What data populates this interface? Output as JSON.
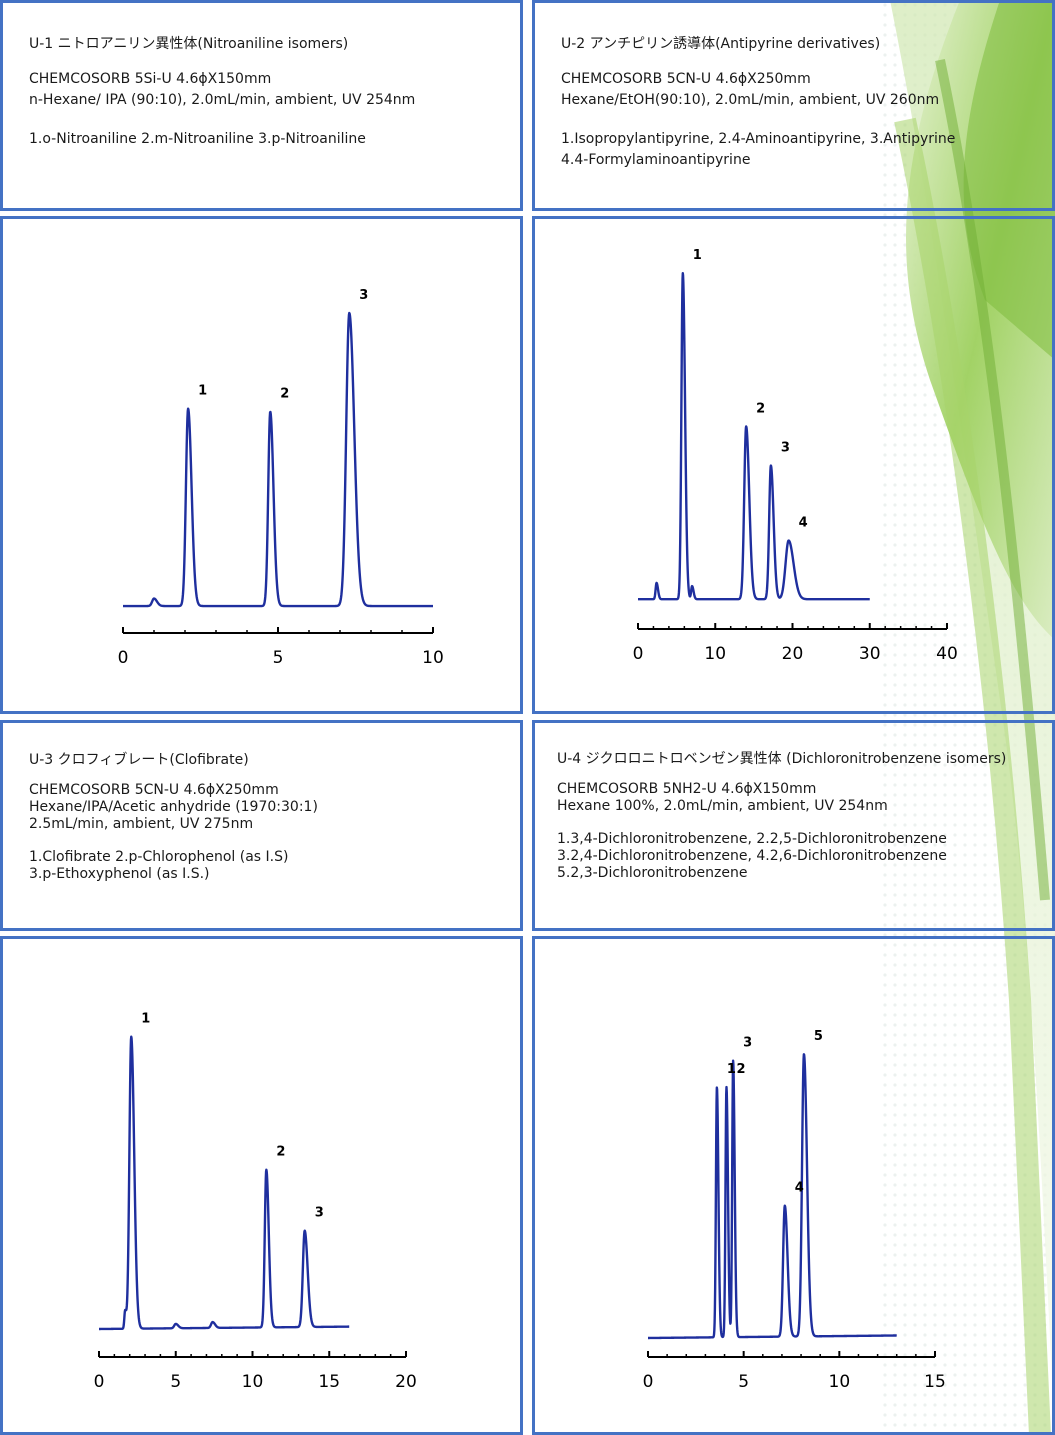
{
  "colors": {
    "border": "#4472c4",
    "trace": "#1f2f9e",
    "axis": "#000000"
  },
  "panels": [
    {
      "title": "U-1 ニトロアニリン異性体(Nitroaniline isomers)",
      "lines": [
        "CHEMCOSORB 5Si-U 4.6ϕX150mm",
        "n-Hexane/ IPA (90:10), 2.0mL/min, ambient, UV 254nm",
        "",
        "1.o-Nitroaniline 2.m-Nitroaniline 3.p-Nitroaniline"
      ]
    },
    {
      "title": "U-2 アンチピリン誘導体(Antipyrine derivatives)",
      "lines": [
        "CHEMCOSORB 5CN-U 4.6ϕX250mm",
        "Hexane/EtOH(90:10), 2.0mL/min, ambient, UV 260nm",
        "",
        "1.Isopropylantipyrine, 2.4-Aminoantipyrine, 3.Antipyrine",
        "4.4-Formylaminoantipyrine"
      ]
    },
    {
      "title": "U-3 クロフィブレート(Clofibrate)",
      "lines": [
        "CHEMCOSORB 5CN-U 4.6ϕX250mm",
        "Hexane/IPA/Acetic anhydride (1970:30:1)",
        "2.5mL/min, ambient, UV 275nm",
        "",
        "1.Clofibrate 2.p-Chlorophenol (as I.S)",
        "3.p-Ethoxyphenol (as I.S.)"
      ]
    },
    {
      "title": "U-4 ジクロロニトロベンゼン異性体 (Dichloronitrobenzene isomers)",
      "lines": [
        "CHEMCOSORB 5NH2-U 4.6ϕX150mm",
        "Hexane 100%, 2.0mL/min, ambient, UV 254nm",
        "",
        "1.3,4-Dichloronitrobenzene, 2.2,5-Dichloronitrobenzene",
        "3.2,4-Dichloronitrobenzene, 4.2,6-Dichloronitrobenzene",
        "5.2,3-Dichloronitrobenzene"
      ]
    }
  ],
  "chart_data": [
    {
      "type": "line",
      "name": "U-1",
      "xlim": [
        0,
        10
      ],
      "ticks": [
        0,
        5,
        10
      ],
      "trace_end": 10,
      "baseline": 0.03,
      "drift": 0.0,
      "peaks": [
        {
          "label": "1",
          "rt": 2.1,
          "height": 0.66,
          "width": 0.07
        },
        {
          "label": "2",
          "rt": 4.75,
          "height": 0.65,
          "width": 0.065
        },
        {
          "label": "3",
          "rt": 7.3,
          "height": 0.98,
          "width": 0.1
        }
      ],
      "minor_peaks": [
        {
          "rt": 1.0,
          "height": 0.025,
          "width": 0.06
        }
      ]
    },
    {
      "type": "line",
      "name": "U-2",
      "xlim": [
        0,
        40
      ],
      "ticks": [
        0,
        10,
        20,
        30,
        40
      ],
      "trace_end": 30,
      "baseline": 0.03,
      "drift": 0.0,
      "peaks": [
        {
          "label": "1",
          "rt": 5.8,
          "height": 1.0,
          "width": 0.18
        },
        {
          "label": "2",
          "rt": 14.0,
          "height": 0.53,
          "width": 0.25
        },
        {
          "label": "3",
          "rt": 17.2,
          "height": 0.41,
          "width": 0.22
        },
        {
          "label": "4",
          "rt": 19.5,
          "height": 0.18,
          "width": 0.4
        }
      ],
      "minor_peaks": [
        {
          "rt": 2.4,
          "height": 0.05,
          "width": 0.12
        },
        {
          "rt": 7.0,
          "height": 0.04,
          "width": 0.12
        }
      ]
    },
    {
      "type": "line",
      "name": "U-3",
      "xlim": [
        0,
        20
      ],
      "ticks": [
        0,
        5,
        10,
        15,
        20
      ],
      "trace_end": 16.3,
      "baseline": 0.0,
      "drift": 0.01,
      "peaks": [
        {
          "label": "1",
          "rt": 2.1,
          "height": 1.0,
          "width": 0.12
        },
        {
          "label": "2",
          "rt": 10.9,
          "height": 0.54,
          "width": 0.1
        },
        {
          "label": "3",
          "rt": 13.4,
          "height": 0.33,
          "width": 0.12
        }
      ],
      "minor_peaks": [
        {
          "rt": 1.7,
          "height": 0.06,
          "width": 0.05
        },
        {
          "rt": 5.0,
          "height": 0.015,
          "width": 0.1
        },
        {
          "rt": 7.4,
          "height": 0.02,
          "width": 0.1
        }
      ]
    },
    {
      "type": "line",
      "name": "U-4",
      "xlim": [
        0,
        15
      ],
      "ticks": [
        0,
        5,
        10,
        15
      ],
      "trace_end": 13,
      "baseline": 0.0,
      "drift": 0.01,
      "peaks": [
        {
          "label": "1",
          "rt": 3.6,
          "height": 0.86,
          "width": 0.05
        },
        {
          "label": "2",
          "rt": 4.1,
          "height": 0.86,
          "width": 0.05
        },
        {
          "label": "3",
          "rt": 4.45,
          "height": 0.95,
          "width": 0.05
        },
        {
          "label": "4",
          "rt": 7.15,
          "height": 0.45,
          "width": 0.09
        },
        {
          "label": "5",
          "rt": 8.15,
          "height": 0.97,
          "width": 0.1
        }
      ],
      "minor_peaks": []
    }
  ]
}
